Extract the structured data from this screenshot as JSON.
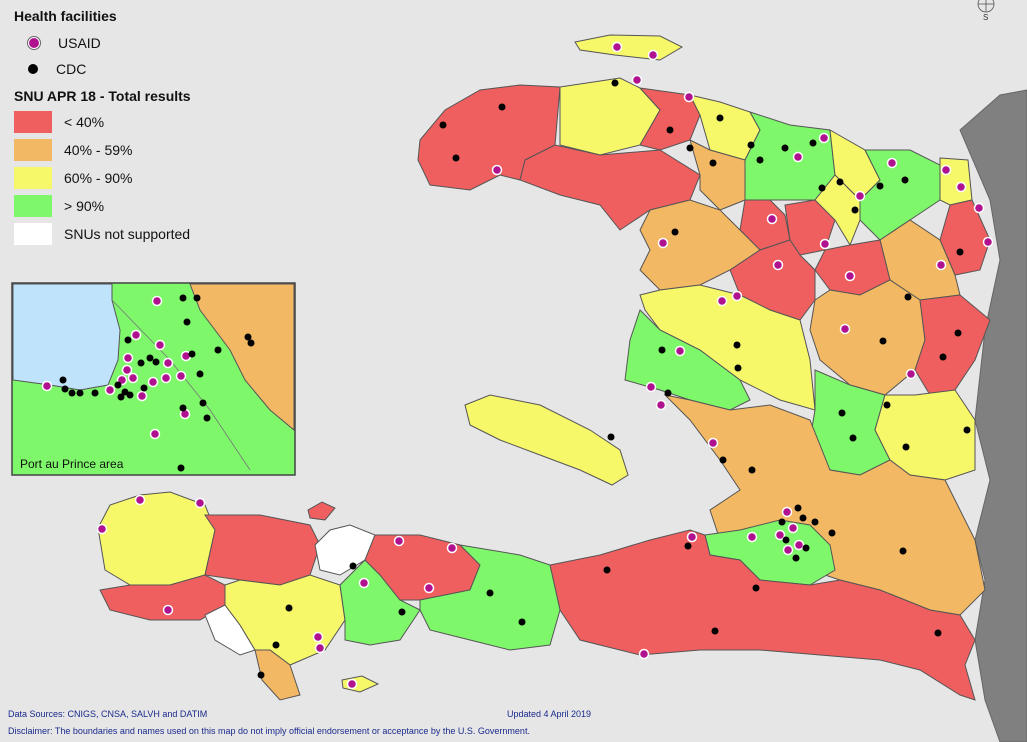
{
  "legend": {
    "facilities_title": "Health facilities",
    "facilities": [
      {
        "label": "USAID",
        "color": "#b0128f"
      },
      {
        "label": "CDC",
        "color": "#000000"
      }
    ],
    "results_title": "SNU APR 18 - Total results",
    "categories": [
      {
        "label": "< 40%",
        "color": "#f05f5f"
      },
      {
        "label": "40% - 59%",
        "color": "#f2b863"
      },
      {
        "label": "60% - 90%",
        "color": "#f7f76a"
      },
      {
        "label": "> 90%",
        "color": "#7ef76a"
      },
      {
        "label": "SNUs not supported",
        "color": "#ffffff"
      }
    ]
  },
  "inset": {
    "label": "Port au Prince area"
  },
  "footer": {
    "sources": "Data Sources: CNIGS, CNSA, SALVH and DATIM",
    "updated": "Updated 4 April 2019",
    "disclaimer": "Disclaimer: The boundaries and names used on this map do not imply official endorsement or acceptance by the U.S. Government."
  },
  "compass": {
    "label": "S"
  },
  "colors": {
    "sea": "#e6e6e6",
    "neighbor_country": "#808080",
    "inset_water": "#bfe3fb",
    "border": "#555555"
  }
}
